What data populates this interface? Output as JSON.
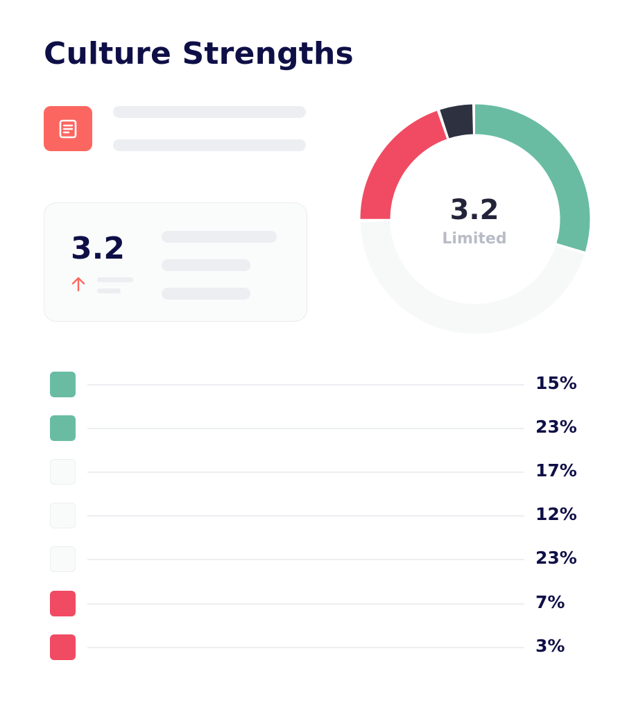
{
  "header": {
    "title": "Culture Strengths"
  },
  "summary": {
    "icon": "document-icon",
    "badge_color": "#fb6760"
  },
  "score_card": {
    "value": "3.2",
    "trend_icon": "arrow-up-icon",
    "trend_color": "#fb6760"
  },
  "donut": {
    "value": "3.2",
    "label": "Limited",
    "segments": [
      {
        "color": "#69bca2",
        "fraction": 0.3
      },
      {
        "color": "#f7f8f8",
        "fraction": 0.45
      },
      {
        "color": "#f04b63",
        "fraction": 0.2
      },
      {
        "color": "#2e3240",
        "fraction": 0.05
      }
    ]
  },
  "legend": [
    {
      "color": "#69bca2",
      "percent": "15%"
    },
    {
      "color": "#69bca2",
      "percent": "23%"
    },
    {
      "color": "#f9fafa",
      "percent": "17%"
    },
    {
      "color": "#f9fafa",
      "percent": "12%"
    },
    {
      "color": "#f9fafa",
      "percent": "23%"
    },
    {
      "color": "#f04b63",
      "percent": "7%"
    },
    {
      "color": "#f04b63",
      "percent": "3%"
    }
  ]
}
